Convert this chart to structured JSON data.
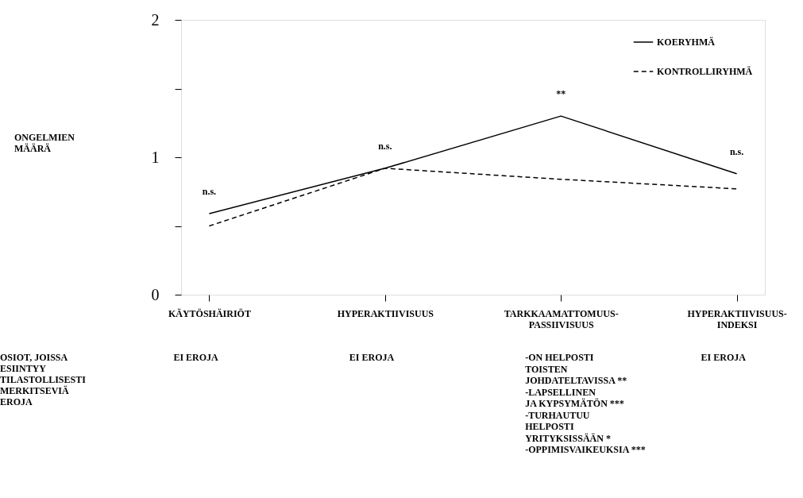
{
  "chart_data": {
    "type": "line",
    "categories": [
      "KÄYTÖSHÄIRIÖT",
      "HYPERAKTIIVISUUS",
      "TARKKAAMATTOMUUS-\nPASSIIVISUUS",
      "HYPERAKTIIVISUUS-\nINDEKSI"
    ],
    "series": [
      {
        "name": "KOERYHMÄ",
        "color": "#000000",
        "line_style": "solid",
        "values": [
          0.59,
          0.92,
          1.3,
          0.88
        ]
      },
      {
        "name": "KONTROLLIRYHMÄ",
        "color": "#000000",
        "line_style": "dashed",
        "values": [
          0.5,
          0.92,
          0.84,
          0.77
        ]
      }
    ],
    "ylim": [
      0,
      2
    ],
    "yticks": [
      0,
      {
        "value": 0.5,
        "label": null
      },
      1,
      {
        "value": 1.5,
        "label": null
      },
      2
    ],
    "grid": false,
    "legend": "top right",
    "marker": "none",
    "annotations": [
      "n.s.",
      "n.s.",
      "**",
      "n.s.",
      "ONGELMIEN\nMÄÄRÄ",
      "OSIOT, JOISSA\nESIINTYY\nTILASTOLLISESTI\nMERKITSEVIÄ\nEROJA",
      "EI EROJA",
      "EI EROJA",
      "-ON HELPOSTI\n TOISTEN\n JOHDATELTAVISSA **\n\n-LAPSELLINEN\n JA KYPSYMÄTÖN ***\n\n-TURHAUTUU\n HELPOSTI\n YRITYKSISSÄÄN *\n\n-OPPIMISVAIKEUKSIA ***",
      "EI EROJA"
    ]
  }
}
